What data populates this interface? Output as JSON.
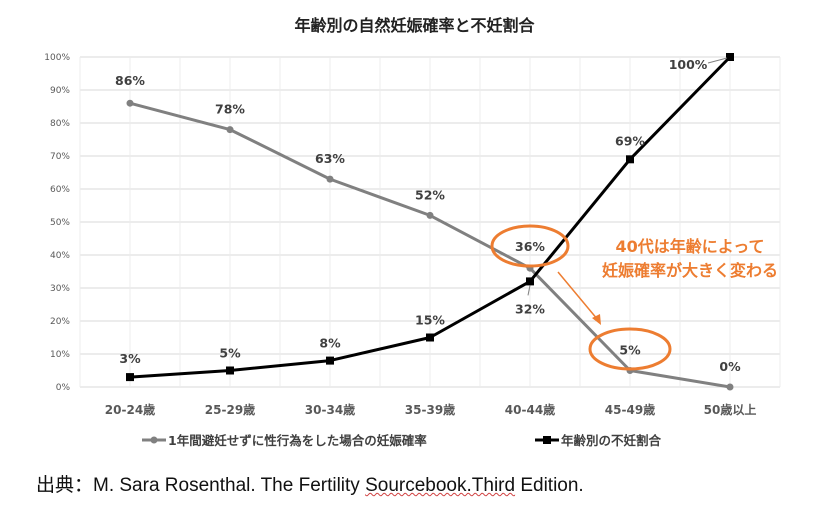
{
  "chart_data": {
    "type": "line",
    "title": "年齢別の自然妊娠確率と不妊割合",
    "categories": [
      "20-24歳",
      "25-29歳",
      "30-34歳",
      "35-39歳",
      "40-44歳",
      "45-49歳",
      "50歳以上"
    ],
    "series": [
      {
        "name": "1年間避妊せずに性行為をした場合の妊娠確率",
        "color": "#808080",
        "marker": "circle",
        "values": [
          86,
          78,
          63,
          52,
          36,
          5,
          0
        ],
        "labels": [
          "86%",
          "78%",
          "63%",
          "52%",
          "36%",
          "5%",
          "0%"
        ]
      },
      {
        "name": "年齢別の不妊割合",
        "color": "#000000",
        "marker": "square",
        "values": [
          3,
          5,
          8,
          15,
          32,
          69,
          100
        ],
        "labels": [
          "3%",
          "5%",
          "8%",
          "15%",
          "32%",
          "69%",
          "100%"
        ]
      }
    ],
    "yticks": [
      "0%",
      "10%",
      "20%",
      "30%",
      "40%",
      "50%",
      "60%",
      "70%",
      "80%",
      "90%",
      "100%"
    ],
    "ylim": [
      0,
      100
    ],
    "xlabel": "",
    "ylabel": "",
    "grid": true,
    "legend_position": "bottom",
    "annotations": [
      {
        "text_line1": "40代は年齢によって",
        "text_line2": "妊娠確率が大きく変わる",
        "color": "#ed7d31"
      }
    ]
  },
  "source": {
    "prefix": "出典：M. Sara Rosenthal. The Fertility ",
    "underlined": "Sourcebook.Third",
    "suffix": " Edition."
  }
}
